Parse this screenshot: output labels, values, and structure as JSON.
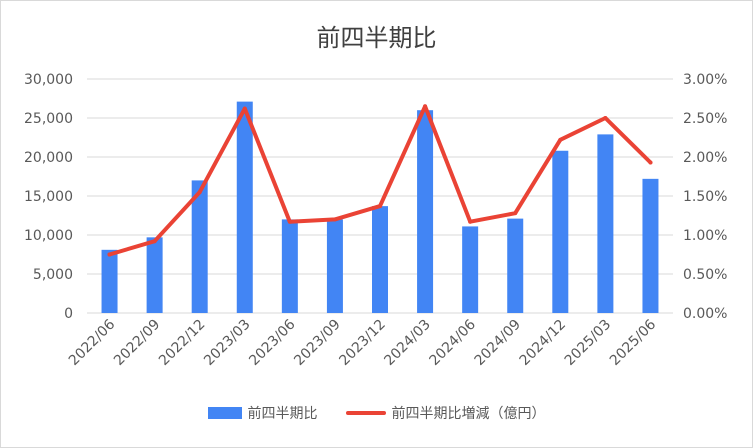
{
  "chart_data": {
    "type": "bar+line",
    "title": "前四半期比",
    "categories": [
      "2022/06",
      "2022/09",
      "2022/12",
      "2023/03",
      "2023/06",
      "2023/09",
      "2023/12",
      "2024/03",
      "2024/06",
      "2024/09",
      "2024/12",
      "2025/03",
      "2025/06"
    ],
    "series": [
      {
        "name": "前四半期比",
        "type": "bar",
        "axis": "left",
        "color": "#4285f4",
        "values": [
          8100,
          9700,
          17000,
          27100,
          12000,
          12000,
          13700,
          26000,
          11100,
          12100,
          20800,
          22900,
          17200
        ]
      },
      {
        "name": "前四半期比増減（億円）",
        "type": "line",
        "axis": "right",
        "color": "#ea4335",
        "values": [
          0.0075,
          0.0092,
          0.0155,
          0.0262,
          0.0117,
          0.012,
          0.0137,
          0.0265,
          0.0117,
          0.0128,
          0.0222,
          0.025,
          0.0193
        ]
      }
    ],
    "y_left": {
      "min": 0,
      "max": 30000,
      "ticks": [
        "0",
        "5,000",
        "10,000",
        "15,000",
        "20,000",
        "25,000",
        "30,000"
      ]
    },
    "y_right": {
      "min": 0,
      "max": 0.03,
      "ticks": [
        "0.00%",
        "0.50%",
        "1.00%",
        "1.50%",
        "2.00%",
        "2.50%",
        "3.00%"
      ]
    },
    "grid": true,
    "legend_position": "bottom"
  }
}
